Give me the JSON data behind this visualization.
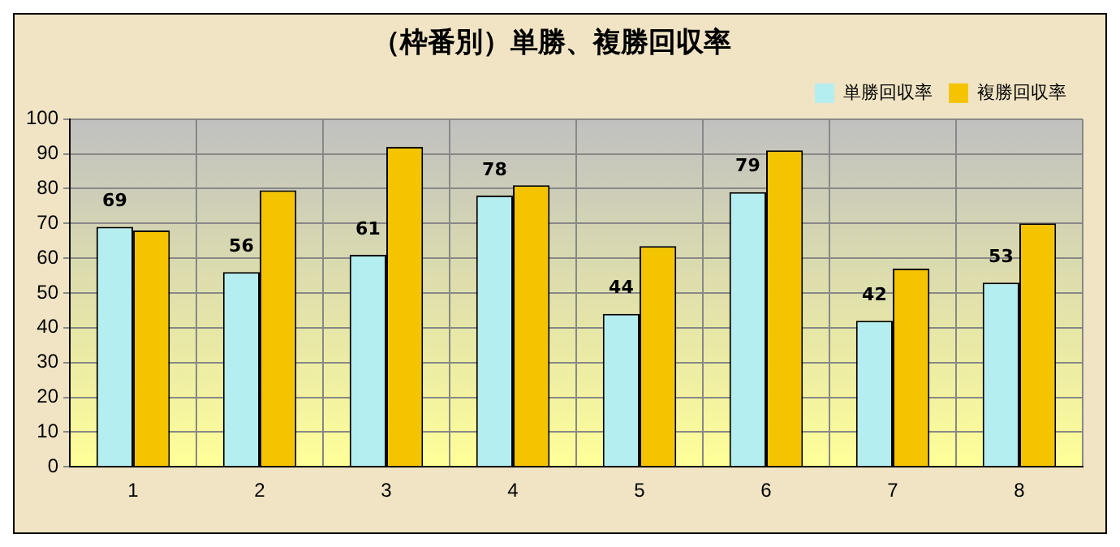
{
  "chart_data": {
    "type": "bar",
    "title": "（枠番別）単勝、複勝回収率",
    "categories": [
      "1",
      "2",
      "3",
      "4",
      "5",
      "6",
      "7",
      "8"
    ],
    "series": [
      {
        "name": "単勝回収率",
        "color": "#b4eef0",
        "values": [
          69,
          56,
          61,
          78,
          44,
          79,
          42,
          53
        ],
        "value_labels": [
          "69",
          "56",
          "61",
          "78",
          "44",
          "79",
          "42",
          "53"
        ]
      },
      {
        "name": "複勝回収率",
        "color": "#f5c400",
        "values": [
          68,
          79.5,
          92,
          81,
          63.5,
          91,
          57,
          70
        ]
      }
    ],
    "ylim": [
      0,
      100
    ],
    "yticks": [
      0,
      10,
      20,
      30,
      40,
      50,
      60,
      70,
      80,
      90,
      100
    ],
    "grid": true,
    "legend": "top right"
  }
}
